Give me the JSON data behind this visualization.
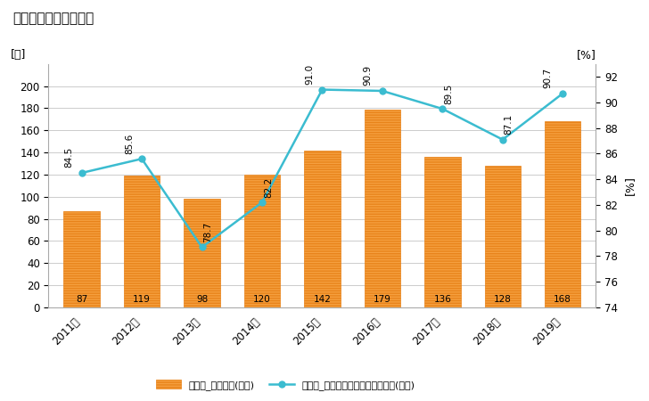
{
  "title": "住宅用建築物数の推移",
  "years": [
    "2011年",
    "2012年",
    "2013年",
    "2014年",
    "2015年",
    "2016年",
    "2017年",
    "2018年",
    "2019年"
  ],
  "bar_values": [
    87,
    119,
    98,
    120,
    142,
    179,
    136,
    128,
    168
  ],
  "line_values": [
    84.5,
    85.6,
    78.7,
    82.2,
    91.0,
    90.9,
    89.5,
    87.1,
    90.7
  ],
  "bar_color": "#F5A040",
  "line_color": "#3BBCD0",
  "left_ylabel": "[棟]",
  "right_ylabel": "[%]",
  "left_ylim": [
    0,
    220
  ],
  "right_ylim": [
    74.0,
    93.0
  ],
  "left_yticks": [
    0,
    20,
    40,
    60,
    80,
    100,
    120,
    140,
    160,
    180,
    200
  ],
  "right_yticks": [
    74.0,
    76.0,
    78.0,
    80.0,
    82.0,
    84.0,
    86.0,
    88.0,
    90.0,
    92.0
  ],
  "legend_bar_label": "住宅用_建築物数(左軸)",
  "legend_line_label": "住宅用_全建築物数にしめるシェア(右軸)",
  "bg_color": "#ffffff",
  "grid_color": "#cccccc",
  "line_annot_offsets": [
    [
      -10,
      4
    ],
    [
      -10,
      4
    ],
    [
      5,
      4
    ],
    [
      5,
      4
    ],
    [
      -10,
      4
    ],
    [
      -12,
      4
    ],
    [
      5,
      4
    ],
    [
      5,
      4
    ],
    [
      -12,
      4
    ]
  ]
}
